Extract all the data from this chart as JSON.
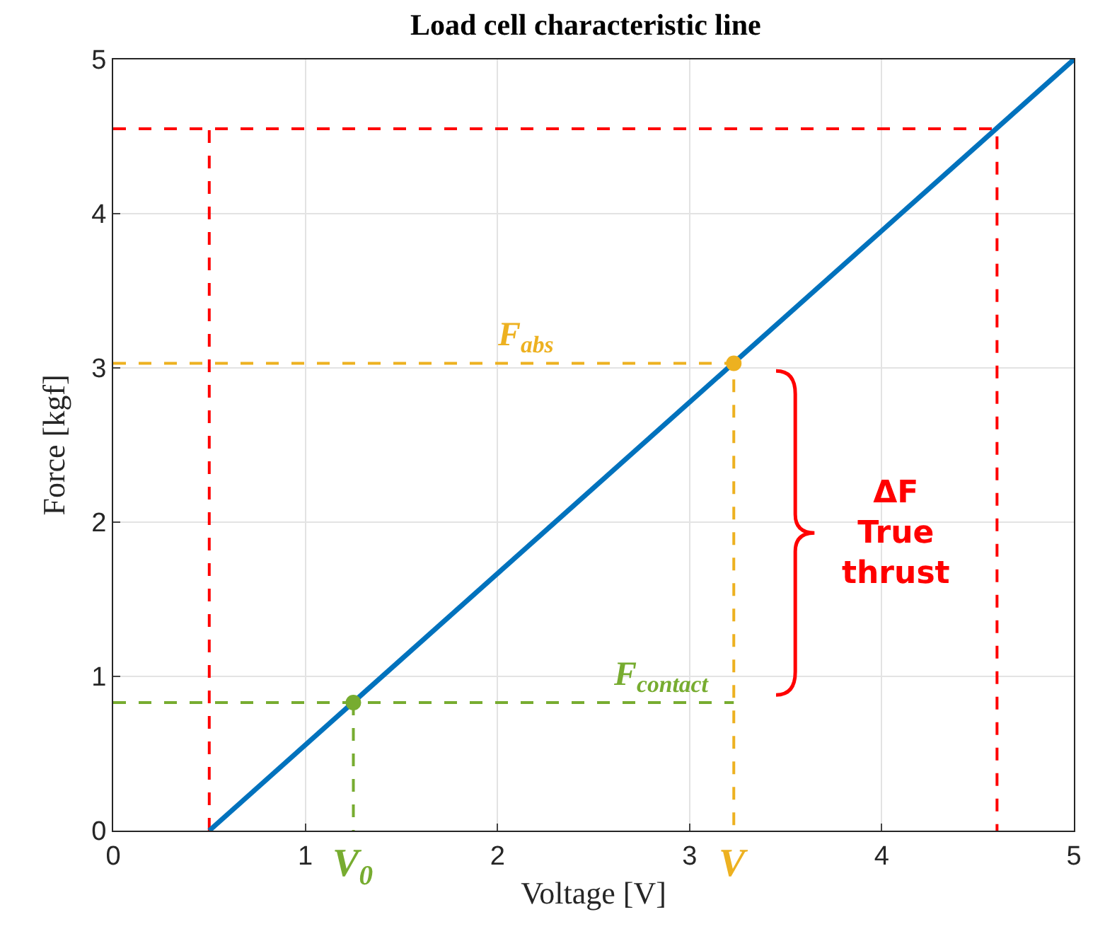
{
  "chart_data": {
    "type": "line",
    "title": "Load cell characteristic line",
    "xlabel": "Voltage [V]",
    "ylabel": "Force [kgf]",
    "xlim": [
      0,
      5
    ],
    "ylim": [
      0,
      5
    ],
    "xticks": [
      0,
      1,
      2,
      3,
      4,
      5
    ],
    "yticks": [
      0,
      1,
      2,
      3,
      4,
      5
    ],
    "grid": true,
    "series": [
      {
        "color": "#ff0000",
        "line_style": "dashed",
        "x": [
          0.5,
          0.5
        ],
        "values": [
          0,
          4.55
        ]
      },
      {
        "color": "#ff0000",
        "line_style": "dashed",
        "x": [
          0,
          4.6,
          4.6
        ],
        "values": [
          4.55,
          4.55,
          0
        ]
      },
      {
        "color": "#edb120",
        "line_style": "dashed",
        "x": [
          0,
          3.23,
          3.23
        ],
        "values": [
          3.03,
          3.03,
          0
        ]
      },
      {
        "color": "#77ac30",
        "line_style": "dashed",
        "x": [
          0,
          3.23
        ],
        "values": [
          0.83,
          0.83
        ]
      },
      {
        "color": "#77ac30",
        "line_style": "dashed",
        "x": [
          1.25,
          1.25
        ],
        "values": [
          0.83,
          0
        ]
      },
      {
        "color": "#0072bd",
        "line_style": "solid",
        "x": [
          0.5,
          5
        ],
        "values": [
          0,
          5
        ]
      },
      {
        "type": "scatter",
        "color": "#77ac30",
        "marker": "circle",
        "x": [
          1.25
        ],
        "values": [
          0.83
        ]
      },
      {
        "type": "scatter",
        "color": "#edb120",
        "marker": "circle",
        "x": [
          3.23
        ],
        "values": [
          3.03
        ]
      }
    ],
    "annotations": [
      {
        "text": "F$_{abs}$",
        "x": 2.15,
        "y": 3.03
      },
      {
        "text": "F$_{contact}$",
        "x": 2.85,
        "y": 0.83
      },
      "V$_{0}$",
      "V",
      "ΔF\nTrue\nthrust"
    ]
  }
}
